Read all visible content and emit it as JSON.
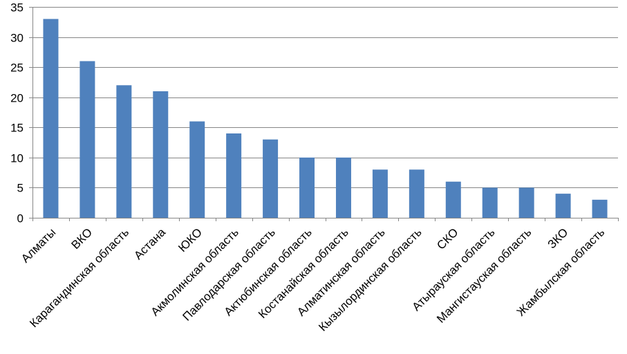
{
  "chart_data": {
    "type": "bar",
    "title": "",
    "xlabel": "",
    "ylabel": "",
    "ylim": [
      0,
      35
    ],
    "yticks": [
      0,
      5,
      10,
      15,
      20,
      25,
      30,
      35
    ],
    "grid": true,
    "legend": "none",
    "bar_color": "#4f81bd",
    "categories": [
      "Алматы",
      "ВКО",
      "Карагандинская область",
      "Астана",
      "ЮКО",
      "Акмолинская область",
      "Павлодарская область",
      "Актюбинская область",
      "Костанайская область",
      "Алматинская область",
      "Кызылординская область",
      "СКО",
      "Атырауская область",
      "Мангистауская область",
      "ЗКО",
      "Жамбылская область"
    ],
    "values": [
      33,
      26,
      22,
      21,
      16,
      14,
      13,
      10,
      10,
      8,
      8,
      6,
      5,
      5,
      4,
      3
    ]
  }
}
